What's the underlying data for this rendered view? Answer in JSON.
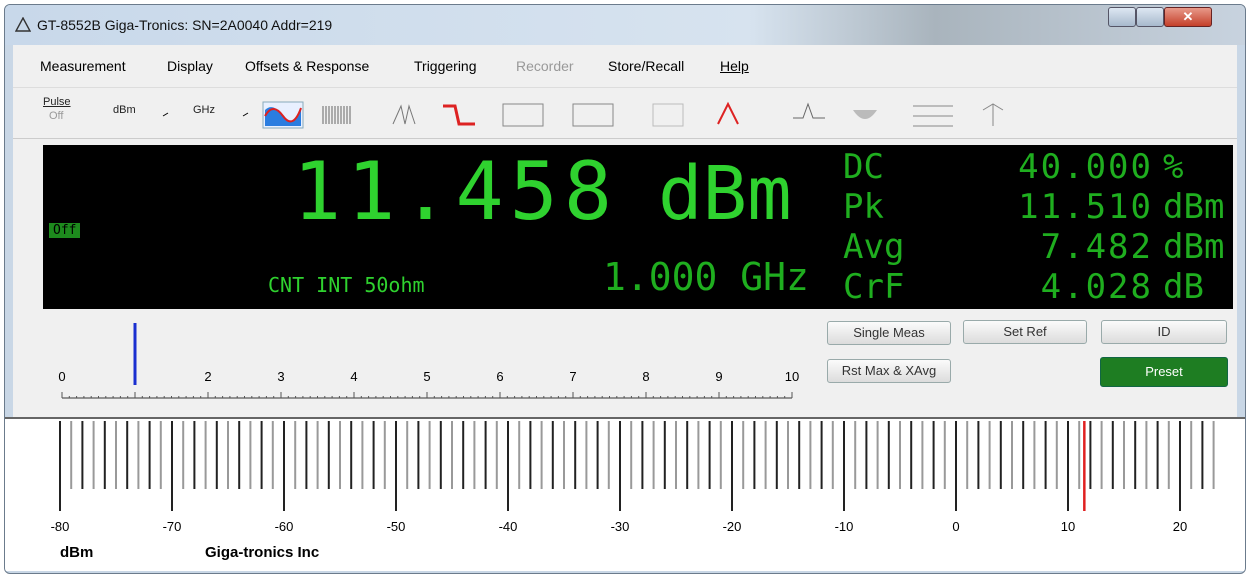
{
  "window": {
    "title": "GT-8552B Giga-Tronics: SN=2A0040 Addr=219"
  },
  "menu": [
    "Measurement",
    "Display",
    "Offsets & Response",
    "Triggering",
    "Recorder",
    "Store/Recall",
    "Help"
  ],
  "toolbar": {
    "pulse": "Pulse",
    "pulse_state": "Off",
    "unit": "dBm",
    "freq_unit": "GHz"
  },
  "display": {
    "indicator": "Off",
    "reading": "11.458",
    "reading_unit": "dBm",
    "status": "CNT INT 50ohm",
    "frequency": "1.000 GHz",
    "stats": [
      {
        "label": "DC",
        "value": "40.000",
        "unit": "%"
      },
      {
        "label": "Pk",
        "value": "11.510",
        "unit": "dBm"
      },
      {
        "label": "Avg",
        "value": "7.482",
        "unit": "dBm"
      },
      {
        "label": "CrF",
        "value": "4.028",
        "unit": "dB"
      }
    ]
  },
  "slider": {
    "ticks": [
      0,
      2,
      3,
      4,
      5,
      6,
      7,
      8,
      9,
      10
    ]
  },
  "buttons": [
    "Single Meas",
    "Set Ref",
    "ID",
    "Rst Max & XAvg",
    "Preset"
  ],
  "meter": {
    "ticks": [
      -80,
      -70,
      -60,
      -50,
      -40,
      -30,
      -20,
      -10,
      0,
      10,
      20
    ],
    "unit": "dBm",
    "brand": "Giga-tronics Inc"
  }
}
